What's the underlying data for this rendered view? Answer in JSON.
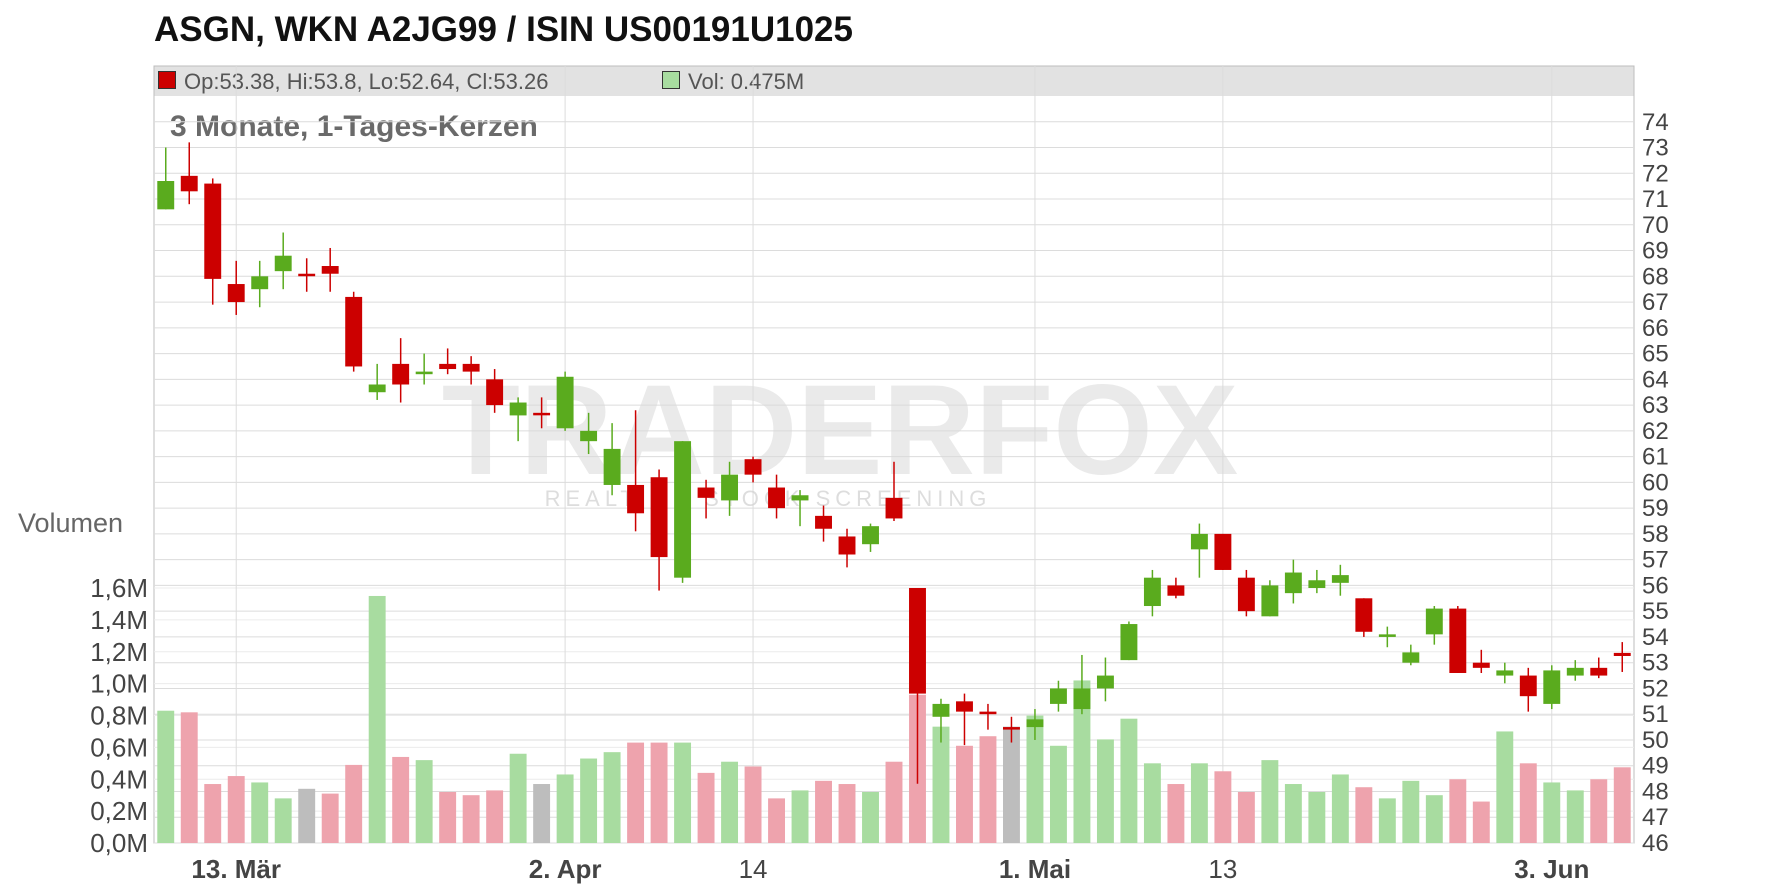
{
  "title": "ASGN, WKN A2JG99 / ISIN US00191U1025",
  "info": {
    "ohlc_text": "Op:53.38, Hi:53.8, Lo:52.64, Cl:53.26",
    "ohlc_color": "#cc0000",
    "vol_text": "Vol: 0.475M",
    "vol_color": "#a8dca0"
  },
  "subtitle": "3 Monate, 1-Tages-Kerzen",
  "volume_label": "Volumen",
  "watermark": {
    "main": "TRADERFOX",
    "sub": "REALTIME STOCK SCREENING"
  },
  "colors": {
    "up": "#5aab1e",
    "down": "#cc0000",
    "vol_up": "#a8dca0",
    "vol_down": "#eea3ad",
    "vol_neutral": "#bdbdbd",
    "grid": "#dcdcdc"
  },
  "chart_data": {
    "type": "candlestick",
    "price_ylim": [
      46,
      75
    ],
    "price_ticks": [
      46,
      47,
      48,
      49,
      50,
      51,
      52,
      53,
      54,
      55,
      56,
      57,
      58,
      59,
      60,
      61,
      62,
      63,
      64,
      65,
      66,
      67,
      68,
      69,
      70,
      71,
      72,
      73,
      74
    ],
    "volume_ylim": [
      0,
      1.6
    ],
    "volume_ticks": [
      "0,0M",
      "0,2M",
      "0,4M",
      "0,6M",
      "0,8M",
      "1,0M",
      "1,2M",
      "1,4M",
      "1,6M"
    ],
    "volume_tick_values": [
      0,
      0.2,
      0.4,
      0.6,
      0.8,
      1.0,
      1.2,
      1.4,
      1.6
    ],
    "x_labels": [
      {
        "label": "13. Mär",
        "index": 3,
        "bold": true
      },
      {
        "label": "2. Apr",
        "index": 17,
        "bold": true
      },
      {
        "label": "14",
        "index": 25,
        "bold": false
      },
      {
        "label": "1. Mai",
        "index": 37,
        "bold": true
      },
      {
        "label": "13",
        "index": 45,
        "bold": false
      },
      {
        "label": "3. Jun",
        "index": 59,
        "bold": true
      }
    ],
    "candles": [
      {
        "o": 70.6,
        "h": 73.0,
        "l": 70.6,
        "c": 71.7,
        "v": 0.83
      },
      {
        "o": 71.9,
        "h": 73.2,
        "l": 70.8,
        "c": 71.3,
        "v": 0.82
      },
      {
        "o": 71.6,
        "h": 71.8,
        "l": 66.9,
        "c": 67.9,
        "v": 0.37
      },
      {
        "o": 67.7,
        "h": 68.6,
        "l": 66.5,
        "c": 67.0,
        "v": 0.42
      },
      {
        "o": 67.5,
        "h": 68.6,
        "l": 66.8,
        "c": 68.0,
        "v": 0.38
      },
      {
        "o": 68.2,
        "h": 69.7,
        "l": 67.5,
        "c": 68.8,
        "v": 0.28
      },
      {
        "o": 68.1,
        "h": 68.7,
        "l": 67.4,
        "c": 68.1,
        "v": 0.34
      },
      {
        "o": 68.4,
        "h": 69.1,
        "l": 67.4,
        "c": 68.1,
        "v": 0.31
      },
      {
        "o": 67.2,
        "h": 67.4,
        "l": 64.3,
        "c": 64.5,
        "v": 0.49
      },
      {
        "o": 63.5,
        "h": 64.6,
        "l": 63.2,
        "c": 63.8,
        "v": 1.55
      },
      {
        "o": 64.6,
        "h": 65.6,
        "l": 63.1,
        "c": 63.8,
        "v": 0.54
      },
      {
        "o": 64.2,
        "h": 65.0,
        "l": 63.8,
        "c": 64.3,
        "v": 0.52
      },
      {
        "o": 64.6,
        "h": 65.2,
        "l": 64.2,
        "c": 64.4,
        "v": 0.32
      },
      {
        "o": 64.6,
        "h": 64.9,
        "l": 63.8,
        "c": 64.3,
        "v": 0.3
      },
      {
        "o": 64.0,
        "h": 64.4,
        "l": 62.7,
        "c": 63.0,
        "v": 0.33
      },
      {
        "o": 62.6,
        "h": 63.3,
        "l": 61.6,
        "c": 63.1,
        "v": 0.56
      },
      {
        "o": 62.7,
        "h": 63.3,
        "l": 62.1,
        "c": 62.7,
        "v": 0.37
      },
      {
        "o": 62.1,
        "h": 64.3,
        "l": 62.0,
        "c": 64.1,
        "v": 0.43
      },
      {
        "o": 61.6,
        "h": 62.7,
        "l": 61.1,
        "c": 62.0,
        "v": 0.53
      },
      {
        "o": 59.9,
        "h": 62.3,
        "l": 59.5,
        "c": 61.3,
        "v": 0.57
      },
      {
        "o": 59.9,
        "h": 62.8,
        "l": 58.1,
        "c": 58.8,
        "v": 0.63
      },
      {
        "o": 60.2,
        "h": 60.5,
        "l": 55.8,
        "c": 57.1,
        "v": 0.63
      },
      {
        "o": 56.3,
        "h": 61.6,
        "l": 56.1,
        "c": 61.6,
        "v": 0.63
      },
      {
        "o": 59.8,
        "h": 60.1,
        "l": 58.6,
        "c": 59.4,
        "v": 0.44
      },
      {
        "o": 59.3,
        "h": 60.8,
        "l": 58.7,
        "c": 60.3,
        "v": 0.51
      },
      {
        "o": 60.9,
        "h": 61.0,
        "l": 60.0,
        "c": 60.3,
        "v": 0.48
      },
      {
        "o": 59.8,
        "h": 60.3,
        "l": 58.6,
        "c": 59.0,
        "v": 0.28
      },
      {
        "o": 59.3,
        "h": 59.7,
        "l": 58.3,
        "c": 59.5,
        "v": 0.33
      },
      {
        "o": 58.7,
        "h": 59.1,
        "l": 57.7,
        "c": 58.2,
        "v": 0.39
      },
      {
        "o": 57.9,
        "h": 58.2,
        "l": 56.7,
        "c": 57.2,
        "v": 0.37
      },
      {
        "o": 57.6,
        "h": 58.4,
        "l": 57.3,
        "c": 58.3,
        "v": 0.32
      },
      {
        "o": 59.4,
        "h": 60.8,
        "l": 58.5,
        "c": 58.6,
        "v": 0.51
      },
      {
        "o": 55.9,
        "h": 55.9,
        "l": 48.3,
        "c": 51.8,
        "v": 0.93
      },
      {
        "o": 50.9,
        "h": 51.6,
        "l": 49.9,
        "c": 51.4,
        "v": 0.73
      },
      {
        "o": 51.5,
        "h": 51.8,
        "l": 49.8,
        "c": 51.1,
        "v": 0.61
      },
      {
        "o": 51.1,
        "h": 51.4,
        "l": 50.4,
        "c": 51.0,
        "v": 0.67
      },
      {
        "o": 50.5,
        "h": 50.9,
        "l": 49.9,
        "c": 50.5,
        "v": 0.73
      },
      {
        "o": 50.5,
        "h": 51.2,
        "l": 50.0,
        "c": 50.8,
        "v": 0.8
      },
      {
        "o": 51.4,
        "h": 52.3,
        "l": 51.1,
        "c": 52.0,
        "v": 0.61
      },
      {
        "o": 51.2,
        "h": 53.3,
        "l": 51.0,
        "c": 52.0,
        "v": 1.02
      },
      {
        "o": 52.0,
        "h": 53.2,
        "l": 51.5,
        "c": 52.5,
        "v": 0.65
      },
      {
        "o": 53.1,
        "h": 54.6,
        "l": 53.1,
        "c": 54.5,
        "v": 0.78
      },
      {
        "o": 55.2,
        "h": 56.6,
        "l": 54.8,
        "c": 56.3,
        "v": 0.5
      },
      {
        "o": 56.0,
        "h": 56.3,
        "l": 55.5,
        "c": 55.6,
        "v": 0.37
      },
      {
        "o": 57.4,
        "h": 58.4,
        "l": 56.3,
        "c": 58.0,
        "v": 0.5
      },
      {
        "o": 58.0,
        "h": 58.0,
        "l": 56.6,
        "c": 56.6,
        "v": 0.45
      },
      {
        "o": 56.3,
        "h": 56.6,
        "l": 54.8,
        "c": 55.0,
        "v": 0.32
      },
      {
        "o": 54.8,
        "h": 56.2,
        "l": 54.8,
        "c": 56.0,
        "v": 0.52
      },
      {
        "o": 55.7,
        "h": 57.0,
        "l": 55.3,
        "c": 56.5,
        "v": 0.37
      },
      {
        "o": 55.9,
        "h": 56.6,
        "l": 55.7,
        "c": 56.2,
        "v": 0.32
      },
      {
        "o": 56.1,
        "h": 56.8,
        "l": 55.6,
        "c": 56.4,
        "v": 0.43
      },
      {
        "o": 55.5,
        "h": 55.5,
        "l": 54.0,
        "c": 54.2,
        "v": 0.35
      },
      {
        "o": 54.0,
        "h": 54.4,
        "l": 53.6,
        "c": 54.1,
        "v": 0.28
      },
      {
        "o": 53.0,
        "h": 53.7,
        "l": 52.9,
        "c": 53.4,
        "v": 0.39
      },
      {
        "o": 54.1,
        "h": 55.2,
        "l": 53.7,
        "c": 55.1,
        "v": 0.3
      },
      {
        "o": 55.1,
        "h": 55.2,
        "l": 52.6,
        "c": 52.6,
        "v": 0.4
      },
      {
        "o": 53.0,
        "h": 53.5,
        "l": 52.6,
        "c": 52.8,
        "v": 0.26
      },
      {
        "o": 52.5,
        "h": 53.0,
        "l": 52.2,
        "c": 52.7,
        "v": 0.7
      },
      {
        "o": 52.5,
        "h": 52.8,
        "l": 51.1,
        "c": 51.7,
        "v": 0.5
      },
      {
        "o": 51.4,
        "h": 52.9,
        "l": 51.2,
        "c": 52.7,
        "v": 0.38
      },
      {
        "o": 52.5,
        "h": 53.1,
        "l": 52.3,
        "c": 52.8,
        "v": 0.33
      },
      {
        "o": 52.8,
        "h": 53.2,
        "l": 52.4,
        "c": 52.5,
        "v": 0.4
      },
      {
        "o": 53.38,
        "h": 53.8,
        "l": 52.64,
        "c": 53.26,
        "v": 0.475
      }
    ]
  }
}
